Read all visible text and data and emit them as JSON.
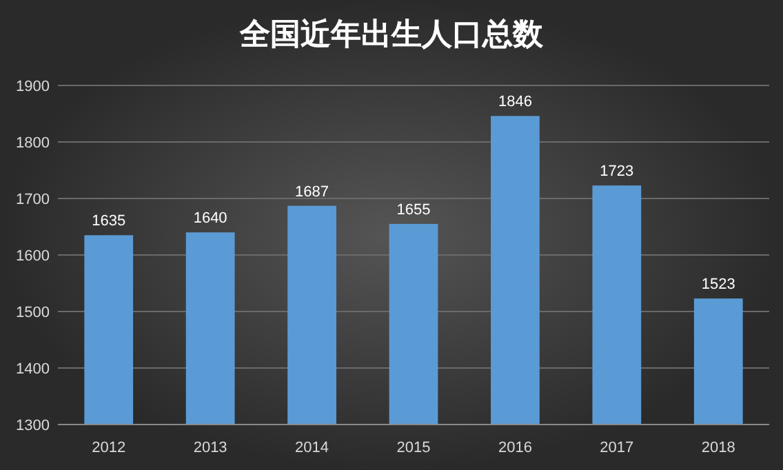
{
  "chart_data": {
    "type": "bar",
    "title": "全国近年出生人口总数",
    "categories": [
      "2012",
      "2013",
      "2014",
      "2015",
      "2016",
      "2017",
      "2018"
    ],
    "values": [
      1635,
      1640,
      1687,
      1655,
      1846,
      1723,
      1523
    ],
    "color": "#5b9bd5",
    "ylim": [
      1300,
      1900
    ],
    "yticks": [
      1300,
      1400,
      1500,
      1600,
      1700,
      1800,
      1900
    ],
    "grid": "y",
    "data_labels": true
  }
}
